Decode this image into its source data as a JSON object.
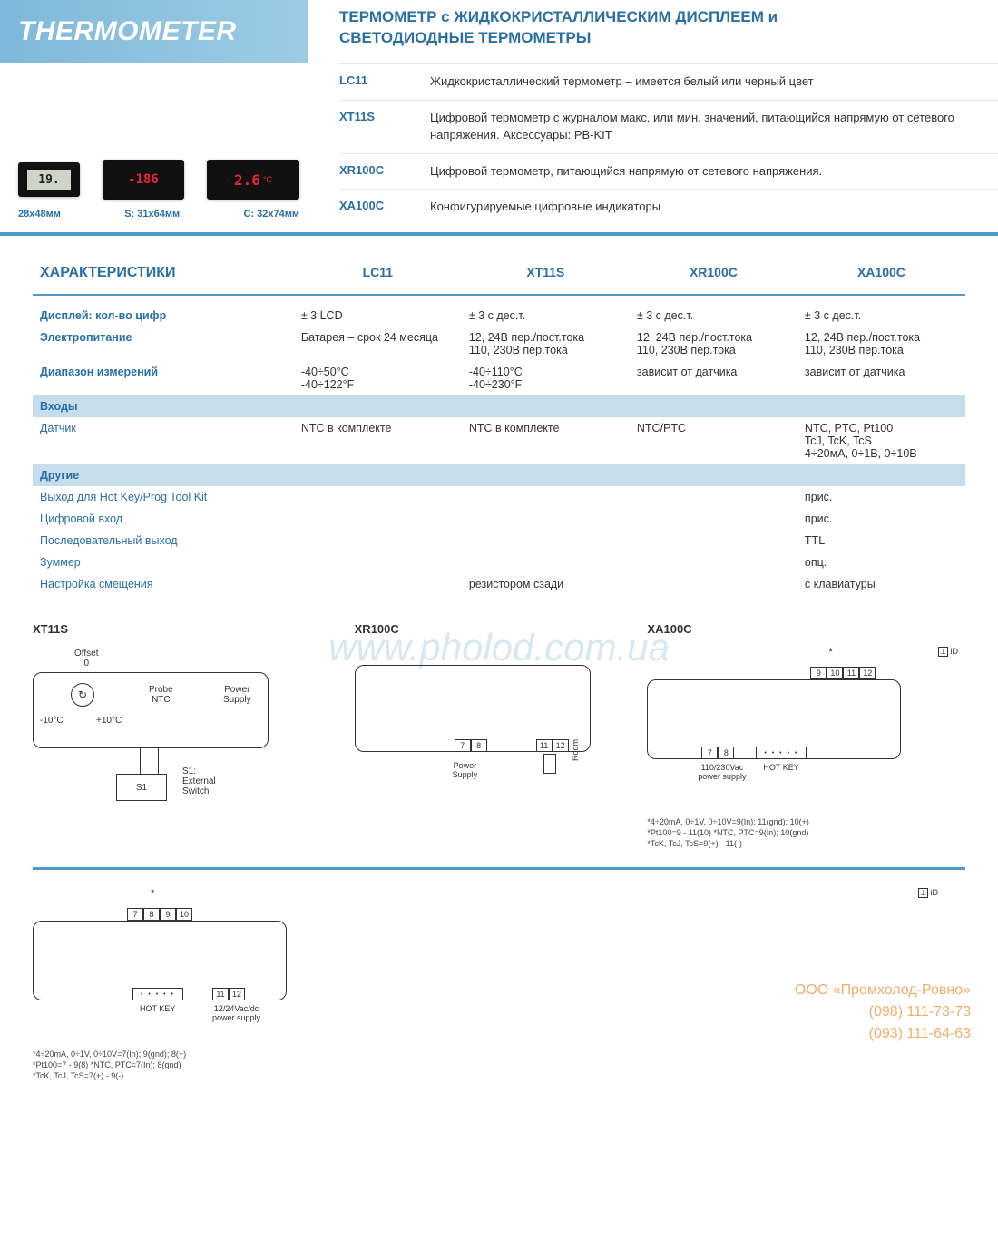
{
  "banner_title": "THERMOMETER",
  "subtitle_line1": "ТЕРМОМЕТР с ЖИДКОКРИСТАЛЛИЧЕСКИМ ДИСПЛЕЕМ и",
  "subtitle_line2": "СВЕТОДИОДНЫЕ ТЕРМОМЕТРЫ",
  "device_displays": {
    "d1": "19.",
    "d2": "-186",
    "d3": "2.6"
  },
  "size_labels": [
    "28x48мм",
    "S: 31x64мм",
    "C: 32x74мм"
  ],
  "products": [
    {
      "code": "LC11",
      "desc": "Жидкокристаллический термометр – имеется белый или черный цвет"
    },
    {
      "code": "XT11S",
      "desc": "Цифровой термометр с журналом макс. или мин. значений, питающийся напрямую от сетевого напряжения. Аксессуары: PB-KIT"
    },
    {
      "code": "XR100C",
      "desc": "Цифровой термометр, питающийся напрямую от сетевого напряжения."
    },
    {
      "code": "XA100C",
      "desc": "Конфигурируемые цифровые индикаторы"
    }
  ],
  "spec_header": "ХАРАКТЕРИСТИКИ",
  "columns": [
    "LC11",
    "XT11S",
    "XR100C",
    "XA100C"
  ],
  "rows": [
    {
      "label": "Дисплей: кол-во цифр",
      "bold": true,
      "v": [
        "± 3 LCD",
        "± 3 с дес.т.",
        "± 3 с дес.т.",
        "± 3 с дес.т."
      ]
    },
    {
      "label": "Электропитание",
      "bold": true,
      "v": [
        "Батарея – срок 24 месяца",
        "12, 24В пер./пост.тока\n110, 230В пер.тока",
        "12, 24В пер./пост.тока\n110, 230В пер.тока",
        "12, 24В пер./пост.тока\n110, 230В пер.тока"
      ]
    },
    {
      "label": "Диапазон измерений",
      "bold": true,
      "v": [
        "-40÷50°C\n-40÷122°F",
        "-40÷110°C\n-40÷230°F",
        "зависит от датчика",
        "зависит от датчика"
      ]
    }
  ],
  "band_inputs": "Входы",
  "inputs_row": {
    "label": "Датчик",
    "v": [
      "NTC в комплекте",
      "NTC в комплекте",
      "NTC/PTC",
      "NTC, PTC, Pt100\nTcJ, TcK, TcS\n4÷20мА, 0÷1В, 0÷10В"
    ]
  },
  "band_other": "Другие",
  "other_rows": [
    {
      "label": "Выход для Hot Key/Prog Tool Kit",
      "v": [
        "",
        "",
        "",
        "прис."
      ]
    },
    {
      "label": "Цифровой вход",
      "v": [
        "",
        "",
        "",
        "прис."
      ]
    },
    {
      "label": "Последовательный выход",
      "v": [
        "",
        "",
        "",
        "TTL"
      ]
    },
    {
      "label": "Зуммер",
      "v": [
        "",
        "",
        "",
        "опц."
      ]
    },
    {
      "label": "Настройка смещения",
      "v": [
        "",
        "резистором сзади",
        "",
        "с клавиатуры"
      ]
    }
  ],
  "diagrams": {
    "xt11s": {
      "title": "XT11S",
      "offset_label": "Offset\n0",
      "temp_low": "-10°C",
      "temp_high": "+10°C",
      "probe": "Probe\nNTC",
      "power": "Power\nSupply",
      "s1": "S1",
      "s1_desc": "S1:\nExternal\nSwitch"
    },
    "xr100c": {
      "title": "XR100C",
      "terms1": [
        "7",
        "8"
      ],
      "terms2": [
        "11",
        "12"
      ],
      "sub1": "Power\nSupply",
      "sub2": "Room"
    },
    "xa100c_top": {
      "title": "XA100C",
      "terms_top": [
        "9",
        "10",
        "11",
        "12"
      ],
      "terms_left": [
        "7",
        "8"
      ],
      "hotkey": "HOT KEY",
      "psu": "110/230Vac\npower supply",
      "footnotes": [
        "*4÷20mA, 0÷1V, 0÷10V=9(In); 11(gnd); 10(+)",
        "*Pt100=9 - 11(10) *NTC, PTC=9(In); 10(gnd)",
        "*TcK, TcJ, TcS=9(+) - 11(-)"
      ]
    },
    "xa100c_bot": {
      "terms_top": [
        "7",
        "8",
        "9",
        "10"
      ],
      "terms_right": [
        "11",
        "12"
      ],
      "hotkey": "HOT KEY",
      "psu": "12/24Vac/dc\npower supply",
      "footnotes": [
        "*4÷20mA, 0÷1V, 0÷10V=7(In); 9(gnd); 8(+)",
        "*Pt100=7 - 9(8) *NTC, PTC=7(In); 8(gnd)",
        "*TcK, TcJ, TcS=7(+) - 9(-)"
      ]
    }
  },
  "watermark": "www.pholod.com.ua",
  "company": {
    "name": "ООО «Промхолод-Ровно»",
    "phone1": "(098) 111-73-73",
    "phone2": "(093) 111-64-63"
  },
  "colors": {
    "blue_primary": "#2a6fa5",
    "blue_bar": "#4e9bc9",
    "band_bg": "#c6ddec",
    "banner_grad_from": "#7fb8db",
    "banner_grad_to": "#9ccce4"
  }
}
